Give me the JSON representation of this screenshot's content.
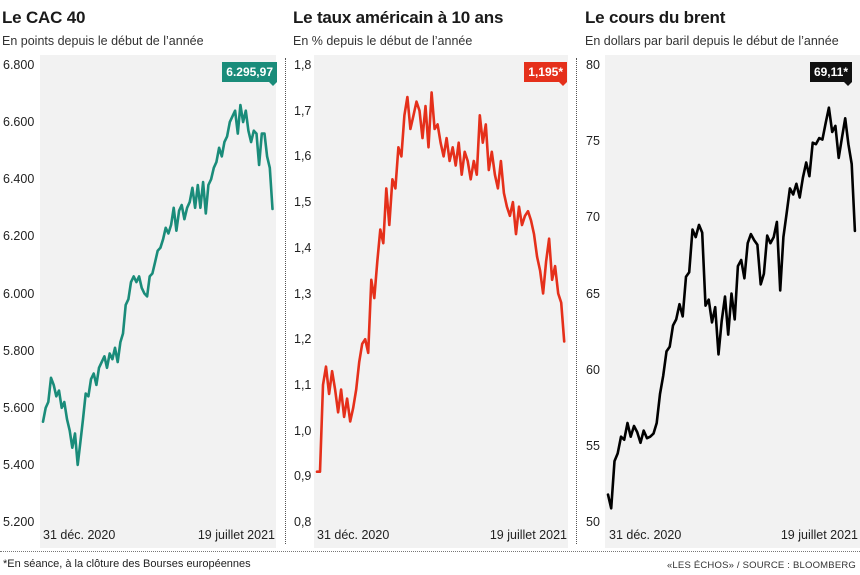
{
  "chart_data": [
    {
      "type": "line",
      "title": "Le CAC 40",
      "subtitle": "En points depuis le début de l’année",
      "color": "#1a8c7a",
      "ylim": [
        5200,
        6800
      ],
      "yticks": [
        "5.200",
        "5.400",
        "5.600",
        "5.800",
        "6.000",
        "6.200",
        "6.400",
        "6.600",
        "6.800"
      ],
      "ytick_values": [
        5200,
        5400,
        5600,
        5800,
        6000,
        6200,
        6400,
        6600,
        6800
      ],
      "x_start_label": "31 déc. 2020",
      "x_end_label": "19 juillet 2021",
      "last_value_label": "6.295,97",
      "series": [
        {
          "values": [
            5551,
            5600,
            5620,
            5705,
            5680,
            5640,
            5660,
            5600,
            5620,
            5560,
            5520,
            5460,
            5510,
            5400,
            5480,
            5560,
            5650,
            5640,
            5700,
            5720,
            5680,
            5740,
            5760,
            5780,
            5740,
            5790,
            5770,
            5810,
            5760,
            5830,
            5860,
            5960,
            5980,
            6040,
            6060,
            6040,
            6060,
            6020,
            6000,
            5990,
            6060,
            6070,
            6110,
            6150,
            6160,
            6190,
            6230,
            6210,
            6240,
            6300,
            6220,
            6290,
            6310,
            6260,
            6300,
            6320,
            6370,
            6300,
            6380,
            6300,
            6390,
            6280,
            6380,
            6400,
            6440,
            6460,
            6510,
            6480,
            6530,
            6550,
            6600,
            6620,
            6640,
            6560,
            6660,
            6600,
            6640,
            6570,
            6530,
            6570,
            6560,
            6450,
            6560,
            6560,
            6480,
            6440,
            6296
          ]
        }
      ]
    },
    {
      "type": "line",
      "title": "Le taux américain à 10 ans",
      "subtitle": "En % depuis le début de l’année",
      "color": "#e5301b",
      "ylim": [
        0.8,
        1.8
      ],
      "yticks": [
        "0,8",
        "0,9",
        "1,0",
        "1,1",
        "1,2",
        "1,3",
        "1,4",
        "1,5",
        "1,6",
        "1,7",
        "1,8"
      ],
      "ytick_values": [
        0.8,
        0.9,
        1.0,
        1.1,
        1.2,
        1.3,
        1.4,
        1.5,
        1.6,
        1.7,
        1.8
      ],
      "x_start_label": "31 déc. 2020",
      "x_end_label": "19 juillet 2021",
      "last_value_label": "1,195*",
      "series": [
        {
          "values": [
            0.91,
            0.91,
            1.1,
            1.14,
            1.08,
            1.13,
            1.09,
            1.04,
            1.09,
            1.03,
            1.07,
            1.02,
            1.05,
            1.09,
            1.15,
            1.19,
            1.2,
            1.17,
            1.33,
            1.29,
            1.37,
            1.44,
            1.41,
            1.53,
            1.45,
            1.55,
            1.53,
            1.62,
            1.6,
            1.69,
            1.73,
            1.66,
            1.69,
            1.72,
            1.7,
            1.64,
            1.71,
            1.62,
            1.74,
            1.66,
            1.67,
            1.63,
            1.6,
            1.64,
            1.59,
            1.62,
            1.58,
            1.63,
            1.56,
            1.61,
            1.59,
            1.55,
            1.59,
            1.56,
            1.69,
            1.63,
            1.67,
            1.57,
            1.61,
            1.56,
            1.53,
            1.59,
            1.52,
            1.49,
            1.47,
            1.5,
            1.43,
            1.49,
            1.45,
            1.47,
            1.48,
            1.46,
            1.43,
            1.38,
            1.35,
            1.3,
            1.37,
            1.42,
            1.33,
            1.36,
            1.3,
            1.28,
            1.195
          ]
        }
      ]
    },
    {
      "type": "line",
      "title": "Le cours du brent",
      "subtitle": "En dollars par baril depuis le début de l’année",
      "color": "#000000",
      "ylim": [
        50,
        80
      ],
      "yticks": [
        "50",
        "55",
        "60",
        "65",
        "70",
        "75",
        "80"
      ],
      "ytick_values": [
        50,
        55,
        60,
        65,
        70,
        75,
        80
      ],
      "x_start_label": "31 déc. 2020",
      "x_end_label": "19 juillet 2021",
      "last_value_label": "69,11*",
      "series": [
        {
          "values": [
            51.8,
            50.9,
            54.0,
            54.5,
            55.6,
            55.4,
            56.5,
            55.6,
            56.3,
            55.9,
            55.2,
            56.0,
            55.5,
            55.6,
            55.8,
            56.5,
            58.4,
            59.6,
            61.2,
            61.5,
            62.9,
            63.3,
            64.3,
            63.5,
            66.1,
            66.4,
            69.2,
            68.7,
            69.5,
            69.0,
            64.2,
            64.6,
            63.1,
            64.1,
            61.0,
            63.2,
            64.8,
            62.3,
            65.0,
            63.3,
            66.8,
            67.2,
            66.0,
            68.3,
            68.9,
            68.5,
            68.2,
            65.6,
            66.3,
            68.8,
            68.3,
            68.7,
            69.7,
            65.2,
            68.7,
            70.3,
            71.9,
            71.5,
            72.2,
            71.3,
            72.6,
            73.6,
            72.7,
            74.9,
            74.8,
            75.2,
            75.1,
            76.2,
            77.2,
            75.6,
            76.0,
            73.9,
            75.2,
            76.5,
            74.8,
            73.5,
            69.11
          ]
        }
      ]
    }
  ],
  "footnote": "*En séance, à la clôture des Bourses européennes",
  "source": "«LES ÉCHOS» / SOURCE : BLOOMBERG"
}
